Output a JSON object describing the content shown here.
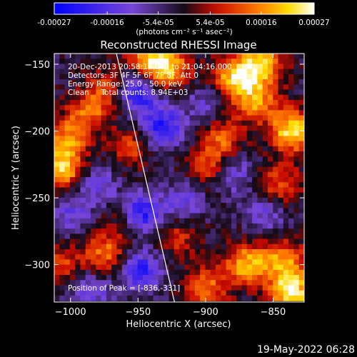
{
  "chart_data": {
    "type": "heatmap",
    "title": "Reconstructed RHESSI Image",
    "xlabel": "Heliocentric X (arcsec)",
    "ylabel": "Heliocentric Y (arcsec)",
    "xlim": [
      -1012,
      -827
    ],
    "ylim": [
      -328,
      -142
    ],
    "x_ticks": [
      -1000,
      -950,
      -900,
      -850
    ],
    "y_ticks": [
      -150,
      -200,
      -250,
      -300
    ],
    "colorbar": {
      "range": [
        -0.00027,
        0.00027
      ],
      "ticks": [
        "-0.00027",
        "-0.00016",
        "-5.4e-05",
        "5.4e-05",
        "0.00016",
        "0.00027"
      ],
      "unit_label": "(photons cm⁻² s⁻¹ asec⁻²)"
    },
    "annotations": [
      "20-Dec-2013 20:58:16.000 to 21:04:16.000",
      "Detectors: 3F 4F 5F 6F 7F 8F, Att 0",
      "Energy Range: 25.0 - 50.0 keV",
      "Clean     Total counts: 8.94E+03"
    ],
    "peak_label": "Position of Peak = [-836,-331]",
    "peak": [
      -836,
      -331
    ],
    "limb_line": {
      "from": [
        -966,
        -142
      ],
      "to": [
        -923,
        -328
      ]
    },
    "blobs": [
      {
        "x": -942,
        "y": -150,
        "v": 0.00021
      },
      {
        "x": -926,
        "y": -152,
        "v": 0.00019
      },
      {
        "x": -878,
        "y": -160,
        "v": 0.00024
      },
      {
        "x": -858,
        "y": -150,
        "v": 0.00022
      },
      {
        "x": -836,
        "y": -200,
        "v": 0.00026
      },
      {
        "x": -862,
        "y": -178,
        "v": 0.00018
      },
      {
        "x": -888,
        "y": -205,
        "v": 0.00015
      },
      {
        "x": -898,
        "y": -228,
        "v": 0.00013
      },
      {
        "x": -845,
        "y": -240,
        "v": 0.00014
      },
      {
        "x": -1006,
        "y": -228,
        "v": 0.00023
      },
      {
        "x": -1002,
        "y": -205,
        "v": 0.00016
      },
      {
        "x": -986,
        "y": -185,
        "v": 0.00014
      },
      {
        "x": -972,
        "y": -168,
        "v": 0.00012
      },
      {
        "x": -955,
        "y": -212,
        "v": 0.00012
      },
      {
        "x": -975,
        "y": -292,
        "v": 0.00016
      },
      {
        "x": -958,
        "y": -268,
        "v": 0.00011
      },
      {
        "x": -870,
        "y": -300,
        "v": 0.00022
      },
      {
        "x": -900,
        "y": -318,
        "v": 0.00016
      },
      {
        "x": -836,
        "y": -322,
        "v": 0.00027
      },
      {
        "x": -842,
        "y": -298,
        "v": 0.0002
      },
      {
        "x": -920,
        "y": -280,
        "v": 0.0001
      },
      {
        "x": -1008,
        "y": -300,
        "v": 0.00012
      },
      {
        "x": -950,
        "y": -170,
        "v": -0.00024
      },
      {
        "x": -932,
        "y": -198,
        "v": -0.0002
      },
      {
        "x": -948,
        "y": -262,
        "v": -0.00024
      },
      {
        "x": -948,
        "y": -305,
        "v": -0.00019
      },
      {
        "x": -915,
        "y": -252,
        "v": -0.00012
      },
      {
        "x": -880,
        "y": -232,
        "v": -0.00011
      },
      {
        "x": -980,
        "y": -240,
        "v": -0.0001
      },
      {
        "x": -1000,
        "y": -262,
        "v": -0.00011
      },
      {
        "x": -855,
        "y": -262,
        "v": -0.0001
      },
      {
        "x": -900,
        "y": -180,
        "v": -9e-05
      },
      {
        "x": -985,
        "y": -320,
        "v": -0.00012
      }
    ]
  },
  "footer": {
    "timestamp": "19-May-2022 06:28"
  }
}
